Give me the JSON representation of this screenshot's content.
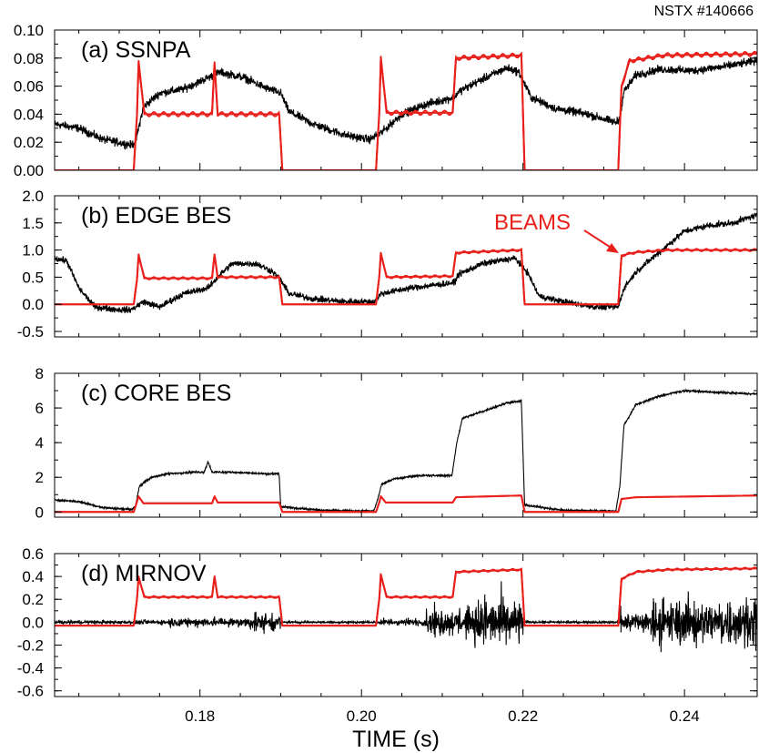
{
  "shot_label": "NSTX #140666",
  "x_axis": {
    "label": "TIME (s)",
    "range": [
      0.162,
      0.249
    ],
    "ticks": [
      0.18,
      0.2,
      0.22,
      0.24
    ],
    "tick_labels": [
      "0.18",
      "0.20",
      "0.22",
      "0.24"
    ],
    "minor_step": 0.005
  },
  "beams_annotation": {
    "text": "BEAMS",
    "color": "#e8201c",
    "panel": "(b) EDGE BES"
  },
  "colors": {
    "signal": "#000000",
    "beams": "#e8201c"
  },
  "chart_data": [
    {
      "type": "line",
      "label": "(a) SSNPA",
      "ylim": [
        0.0,
        0.1
      ],
      "yticks": [
        0.0,
        0.02,
        0.04,
        0.06,
        0.08,
        0.1
      ],
      "ytick_labels": [
        "0.00",
        "0.02",
        "0.04",
        "0.06",
        "0.08",
        "0.10"
      ],
      "minor_y": 0.01,
      "series": [
        {
          "color": "#000000",
          "noise": 0.0025,
          "points": [
            [
              0.162,
              0.033
            ],
            [
              0.165,
              0.03
            ],
            [
              0.168,
              0.022
            ],
            [
              0.1715,
              0.018
            ],
            [
              0.172,
              0.02
            ],
            [
              0.173,
              0.045
            ],
            [
              0.175,
              0.055
            ],
            [
              0.178,
              0.058
            ],
            [
              0.181,
              0.066
            ],
            [
              0.1825,
              0.07
            ],
            [
              0.184,
              0.068
            ],
            [
              0.1855,
              0.066
            ],
            [
              0.188,
              0.059
            ],
            [
              0.19,
              0.055
            ],
            [
              0.191,
              0.042
            ],
            [
              0.194,
              0.033
            ],
            [
              0.198,
              0.025
            ],
            [
              0.201,
              0.022
            ],
            [
              0.2025,
              0.027
            ],
            [
              0.205,
              0.04
            ],
            [
              0.208,
              0.047
            ],
            [
              0.2115,
              0.052
            ],
            [
              0.212,
              0.056
            ],
            [
              0.215,
              0.065
            ],
            [
              0.218,
              0.073
            ],
            [
              0.2195,
              0.07
            ],
            [
              0.221,
              0.052
            ],
            [
              0.224,
              0.044
            ],
            [
              0.228,
              0.04
            ],
            [
              0.2315,
              0.034
            ],
            [
              0.232,
              0.037
            ],
            [
              0.2325,
              0.056
            ],
            [
              0.234,
              0.068
            ],
            [
              0.237,
              0.072
            ],
            [
              0.241,
              0.071
            ],
            [
              0.245,
              0.074
            ],
            [
              0.249,
              0.078
            ]
          ]
        },
        {
          "color": "#e8201c",
          "noise": 0.0,
          "ripple": 0.0015,
          "points": [
            [
              0.162,
              0.0
            ],
            [
              0.1718,
              0.0
            ],
            [
              0.1722,
              0.039
            ],
            [
              0.1724,
              0.078
            ],
            [
              0.1731,
              0.04
            ],
            [
              0.1815,
              0.04
            ],
            [
              0.1818,
              0.077
            ],
            [
              0.1822,
              0.04
            ],
            [
              0.1898,
              0.04
            ],
            [
              0.1902,
              0.0
            ],
            [
              0.2018,
              0.0
            ],
            [
              0.2022,
              0.04
            ],
            [
              0.2024,
              0.081
            ],
            [
              0.2031,
              0.041
            ],
            [
              0.2113,
              0.041
            ],
            [
              0.2117,
              0.08
            ],
            [
              0.2198,
              0.082
            ],
            [
              0.2202,
              0.0
            ],
            [
              0.2318,
              0.0
            ],
            [
              0.2322,
              0.06
            ],
            [
              0.2332,
              0.078
            ],
            [
              0.2375,
              0.082
            ],
            [
              0.249,
              0.083
            ]
          ]
        }
      ]
    },
    {
      "type": "line",
      "label": "(b) EDGE BES",
      "ylim": [
        -0.6,
        2.0
      ],
      "yticks": [
        -0.5,
        0.0,
        0.5,
        1.0,
        1.5,
        2.0
      ],
      "ytick_labels": [
        "-0.5",
        "0.0",
        "0.5",
        "1.0",
        "1.5",
        "2.0"
      ],
      "minor_y": 0.25,
      "series": [
        {
          "color": "#000000",
          "noise": 0.05,
          "points": [
            [
              0.162,
              0.85
            ],
            [
              0.1635,
              0.8
            ],
            [
              0.165,
              0.3
            ],
            [
              0.167,
              -0.05
            ],
            [
              0.17,
              -0.1
            ],
            [
              0.1715,
              -0.1
            ],
            [
              0.172,
              -0.05
            ],
            [
              0.173,
              0.05
            ],
            [
              0.175,
              -0.05
            ],
            [
              0.178,
              0.2
            ],
            [
              0.181,
              0.3
            ],
            [
              0.1825,
              0.55
            ],
            [
              0.184,
              0.75
            ],
            [
              0.187,
              0.75
            ],
            [
              0.189,
              0.6
            ],
            [
              0.19,
              0.45
            ],
            [
              0.191,
              0.2
            ],
            [
              0.194,
              0.1
            ],
            [
              0.198,
              0.05
            ],
            [
              0.2015,
              0.05
            ],
            [
              0.2025,
              0.2
            ],
            [
              0.206,
              0.3
            ],
            [
              0.2115,
              0.4
            ],
            [
              0.212,
              0.55
            ],
            [
              0.215,
              0.75
            ],
            [
              0.219,
              0.85
            ],
            [
              0.2205,
              0.6
            ],
            [
              0.222,
              0.15
            ],
            [
              0.225,
              0.05
            ],
            [
              0.229,
              -0.05
            ],
            [
              0.2318,
              -0.05
            ],
            [
              0.2325,
              0.3
            ],
            [
              0.234,
              0.6
            ],
            [
              0.236,
              0.85
            ],
            [
              0.238,
              1.1
            ],
            [
              0.24,
              1.35
            ],
            [
              0.243,
              1.45
            ],
            [
              0.246,
              1.5
            ],
            [
              0.249,
              1.65
            ]
          ]
        },
        {
          "color": "#e8201c",
          "noise": 0.0,
          "ripple": 0.02,
          "points": [
            [
              0.162,
              0.0
            ],
            [
              0.1718,
              0.0
            ],
            [
              0.1722,
              0.45
            ],
            [
              0.1724,
              0.92
            ],
            [
              0.1731,
              0.48
            ],
            [
              0.1815,
              0.48
            ],
            [
              0.1818,
              0.92
            ],
            [
              0.1822,
              0.5
            ],
            [
              0.1898,
              0.5
            ],
            [
              0.1902,
              0.0
            ],
            [
              0.2018,
              0.0
            ],
            [
              0.2022,
              0.5
            ],
            [
              0.2024,
              0.95
            ],
            [
              0.2031,
              0.5
            ],
            [
              0.2113,
              0.52
            ],
            [
              0.2117,
              0.95
            ],
            [
              0.2198,
              1.0
            ],
            [
              0.2202,
              0.0
            ],
            [
              0.2318,
              0.0
            ],
            [
              0.2322,
              0.9
            ],
            [
              0.234,
              0.96
            ],
            [
              0.238,
              1.0
            ],
            [
              0.249,
              1.0
            ]
          ]
        }
      ]
    },
    {
      "type": "line",
      "label": "(c) CORE BES",
      "ylim": [
        -0.3,
        8.0
      ],
      "yticks": [
        0,
        2,
        4,
        6,
        8
      ],
      "ytick_labels": [
        "0",
        "2",
        "4",
        "6",
        "8"
      ],
      "minor_y": 1,
      "series": [
        {
          "color": "#000000",
          "noise": 0.05,
          "points": [
            [
              0.162,
              0.7
            ],
            [
              0.165,
              0.6
            ],
            [
              0.168,
              0.25
            ],
            [
              0.1715,
              0.15
            ],
            [
              0.172,
              0.3
            ],
            [
              0.1725,
              1.5
            ],
            [
              0.174,
              2.0
            ],
            [
              0.176,
              2.2
            ],
            [
              0.179,
              2.3
            ],
            [
              0.1805,
              2.3
            ],
            [
              0.181,
              2.9
            ],
            [
              0.1815,
              2.3
            ],
            [
              0.184,
              2.3
            ],
            [
              0.188,
              2.2
            ],
            [
              0.1898,
              2.2
            ],
            [
              0.19,
              0.3
            ],
            [
              0.195,
              0.1
            ],
            [
              0.2015,
              0.05
            ],
            [
              0.202,
              0.7
            ],
            [
              0.2025,
              1.6
            ],
            [
              0.204,
              1.9
            ],
            [
              0.207,
              2.1
            ],
            [
              0.2112,
              2.1
            ],
            [
              0.2118,
              4.0
            ],
            [
              0.2125,
              5.4
            ],
            [
              0.215,
              5.8
            ],
            [
              0.218,
              6.3
            ],
            [
              0.2198,
              6.4
            ],
            [
              0.2202,
              0.4
            ],
            [
              0.225,
              0.1
            ],
            [
              0.2315,
              0.05
            ],
            [
              0.232,
              1.5
            ],
            [
              0.2325,
              5.0
            ],
            [
              0.234,
              6.2
            ],
            [
              0.237,
              6.7
            ],
            [
              0.24,
              7.0
            ],
            [
              0.244,
              6.9
            ],
            [
              0.249,
              6.8
            ]
          ]
        },
        {
          "color": "#e8201c",
          "noise": 0.0,
          "ripple": 0.0,
          "points": [
            [
              0.162,
              0.0
            ],
            [
              0.1718,
              0.0
            ],
            [
              0.1722,
              0.6
            ],
            [
              0.1724,
              0.9
            ],
            [
              0.173,
              0.5
            ],
            [
              0.1815,
              0.5
            ],
            [
              0.1818,
              0.9
            ],
            [
              0.1822,
              0.55
            ],
            [
              0.1898,
              0.55
            ],
            [
              0.1902,
              0.0
            ],
            [
              0.2018,
              0.0
            ],
            [
              0.2022,
              0.55
            ],
            [
              0.2024,
              0.9
            ],
            [
              0.203,
              0.55
            ],
            [
              0.2113,
              0.55
            ],
            [
              0.2117,
              0.85
            ],
            [
              0.2198,
              0.95
            ],
            [
              0.2202,
              0.0
            ],
            [
              0.2318,
              0.0
            ],
            [
              0.2322,
              0.75
            ],
            [
              0.234,
              0.85
            ],
            [
              0.249,
              0.95
            ]
          ]
        }
      ]
    },
    {
      "type": "line",
      "label": "(d) MIRNOV",
      "ylim": [
        -0.65,
        0.6
      ],
      "yticks": [
        -0.6,
        -0.4,
        -0.2,
        0.0,
        0.2,
        0.4,
        0.6
      ],
      "ytick_labels": [
        "-0.6",
        "-0.4",
        "-0.2",
        "0.0",
        "0.2",
        "0.4",
        "0.6"
      ],
      "minor_y": 0.1,
      "series": [
        {
          "color": "#000000",
          "noise": 0.0,
          "burst_segments": [
            [
              0.162,
              0.1715,
              0.015
            ],
            [
              0.1715,
              0.176,
              0.02
            ],
            [
              0.176,
              0.186,
              0.04
            ],
            [
              0.186,
              0.19,
              0.08
            ],
            [
              0.19,
              0.202,
              0.01
            ],
            [
              0.202,
              0.208,
              0.03
            ],
            [
              0.208,
              0.214,
              0.12
            ],
            [
              0.214,
              0.22,
              0.22
            ],
            [
              0.22,
              0.232,
              0.01
            ],
            [
              0.232,
              0.236,
              0.1
            ],
            [
              0.236,
              0.249,
              0.2
            ]
          ],
          "points": [
            [
              0.162,
              0.0
            ],
            [
              0.249,
              0.0
            ]
          ]
        },
        {
          "color": "#e8201c",
          "noise": 0.0,
          "ripple": 0.008,
          "points": [
            [
              0.162,
              -0.03
            ],
            [
              0.1718,
              -0.03
            ],
            [
              0.1722,
              0.2
            ],
            [
              0.1724,
              0.4
            ],
            [
              0.1731,
              0.22
            ],
            [
              0.1815,
              0.22
            ],
            [
              0.1818,
              0.4
            ],
            [
              0.1822,
              0.22
            ],
            [
              0.1898,
              0.22
            ],
            [
              0.1902,
              -0.03
            ],
            [
              0.2018,
              -0.03
            ],
            [
              0.2022,
              0.2
            ],
            [
              0.2024,
              0.42
            ],
            [
              0.2031,
              0.22
            ],
            [
              0.2113,
              0.22
            ],
            [
              0.2117,
              0.44
            ],
            [
              0.2198,
              0.46
            ],
            [
              0.2202,
              -0.03
            ],
            [
              0.2318,
              -0.03
            ],
            [
              0.2322,
              0.38
            ],
            [
              0.234,
              0.44
            ],
            [
              0.238,
              0.46
            ],
            [
              0.249,
              0.47
            ]
          ]
        }
      ]
    }
  ]
}
